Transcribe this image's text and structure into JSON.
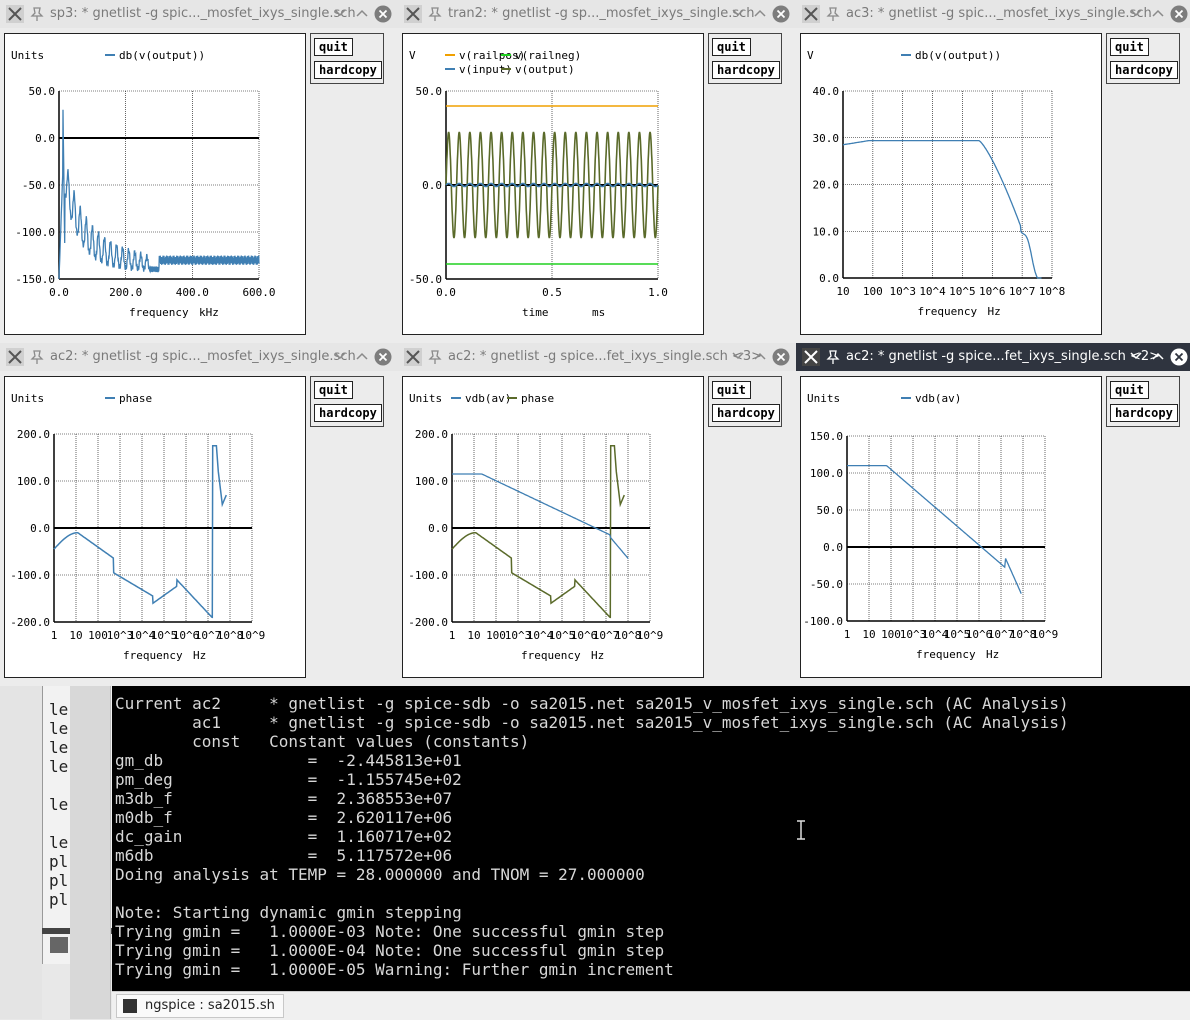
{
  "windows": [
    {
      "title": "sp3: * gnetlist -g spic..._mosfet_ixys_single.sch",
      "active": false
    },
    {
      "title": "tran2: * gnetlist -g sp..._mosfet_ixys_single.sch",
      "active": false
    },
    {
      "title": "ac3: * gnetlist -g spic..._mosfet_ixys_single.sch",
      "active": false
    },
    {
      "title": "ac2: * gnetlist -g spic..._mosfet_ixys_single.sch",
      "active": false
    },
    {
      "title": "ac2: * gnetlist -g spice...fet_ixys_single.sch <3>",
      "active": false
    },
    {
      "title": "ac2: * gnetlist -g spice...fet_ixys_single.sch <2>",
      "active": true
    }
  ],
  "buttons": {
    "quit": "quit",
    "hardcopy": "hardcopy"
  },
  "chart_data": [
    {
      "type": "line",
      "ylabel": "Units",
      "xlabel": "frequency",
      "xunit": "kHz",
      "legend": [
        "db(v(output))"
      ],
      "xticks": [
        "0.0",
        "200.0",
        "400.0",
        "600.0"
      ],
      "yticks": [
        "50.0",
        "0.0",
        "-50.0",
        "-100.0",
        "-150.0"
      ],
      "xlim": [
        0,
        600
      ],
      "ylim": [
        -150,
        50
      ],
      "series": [
        {
          "name": "db(v(output))",
          "color": "#3f7fb3"
        }
      ]
    },
    {
      "type": "line",
      "ylabel": "V",
      "xlabel": "time",
      "xunit": "ms",
      "legend": [
        "v(railpos)",
        "v(railneg)",
        "v(input)",
        "v(output)"
      ],
      "xticks": [
        "0.0",
        "0.5",
        "1.0"
      ],
      "yticks": [
        "50.0",
        "0.0",
        "-50.0"
      ],
      "xlim": [
        0,
        1
      ],
      "ylim": [
        -50,
        50
      ],
      "series": [
        {
          "name": "v(railpos)",
          "color": "#f0a000",
          "value": 42
        },
        {
          "name": "v(railneg)",
          "color": "#20d020",
          "value": -42
        },
        {
          "name": "v(input)",
          "color": "#3f7fb3"
        },
        {
          "name": "v(output)",
          "color": "#5a6a2a"
        }
      ]
    },
    {
      "type": "line",
      "ylabel": "V",
      "xlabel": "frequency",
      "xunit": "Hz",
      "legend": [
        "db(v(output))"
      ],
      "xticks": [
        "10",
        "100",
        "10^3",
        "10^4",
        "10^5",
        "10^6",
        "10^7",
        "10^8"
      ],
      "yticks": [
        "40.0",
        "30.0",
        "20.0",
        "10.0",
        "0.0"
      ],
      "ylim": [
        0,
        40
      ],
      "series": [
        {
          "name": "db(v(output))",
          "color": "#3f7fb3"
        }
      ]
    },
    {
      "type": "line",
      "ylabel": "Units",
      "xlabel": "frequency",
      "xunit": "Hz",
      "legend": [
        "phase"
      ],
      "xticks": [
        "1",
        "10",
        "100",
        "10^3",
        "10^4",
        "10^5",
        "10^6",
        "10^7",
        "10^8",
        "10^9"
      ],
      "yticks": [
        "200.0",
        "100.0",
        "0.0",
        "-100.0",
        "-200.0"
      ],
      "ylim": [
        -200,
        200
      ],
      "series": [
        {
          "name": "phase",
          "color": "#3f7fb3"
        }
      ]
    },
    {
      "type": "line",
      "ylabel": "Units",
      "xlabel": "frequency",
      "xunit": "Hz",
      "legend": [
        "vdb(av)",
        "phase"
      ],
      "xticks": [
        "1",
        "10",
        "100",
        "10^3",
        "10^4",
        "10^5",
        "10^6",
        "10^7",
        "10^8",
        "10^9"
      ],
      "yticks": [
        "200.0",
        "100.0",
        "0.0",
        "-100.0",
        "-200.0"
      ],
      "ylim": [
        -200,
        200
      ],
      "series": [
        {
          "name": "vdb(av)",
          "color": "#3f7fb3"
        },
        {
          "name": "phase",
          "color": "#5a6a2a"
        }
      ]
    },
    {
      "type": "line",
      "ylabel": "Units",
      "xlabel": "frequency",
      "xunit": "Hz",
      "legend": [
        "vdb(av)"
      ],
      "xticks": [
        "1",
        "10",
        "100",
        "10^3",
        "10^4",
        "10^5",
        "10^6",
        "10^7",
        "10^8",
        "10^9"
      ],
      "yticks": [
        "150.0",
        "100.0",
        "50.0",
        "0.0",
        "-50.0",
        "-100.0"
      ],
      "ylim": [
        -100,
        150
      ],
      "series": [
        {
          "name": "vdb(av)",
          "color": "#3f7fb3"
        }
      ]
    }
  ],
  "terminal": {
    "lines": [
      "Current ac2     * gnetlist -g spice-sdb -o sa2015.net sa2015_v_mosfet_ixys_single.sch (AC Analysis)",
      "        ac1     * gnetlist -g spice-sdb -o sa2015.net sa2015_v_mosfet_ixys_single.sch (AC Analysis)",
      "        const   Constant values (constants)",
      "gm_db               =  -2.445813e+01",
      "pm_deg              =  -1.155745e+02",
      "m3db_f              =  2.368553e+07",
      "m0db_f              =  2.620117e+06",
      "dc_gain             =  1.160717e+02",
      "m6db                =  5.117572e+06",
      "Doing analysis at TEMP = 28.000000 and TNOM = 27.000000",
      "",
      "Note: Starting dynamic gmin stepping",
      "Trying gmin =   1.0000E-03 Note: One successful gmin step",
      "Trying gmin =   1.0000E-04 Note: One successful gmin step",
      "Trying gmin =   1.0000E-05 Warning: Further gmin increment"
    ]
  },
  "background_window": {
    "lines": [
      "le",
      "le",
      "le",
      "le",
      "",
      "le",
      "",
      "le",
      "pl",
      "pl",
      "pl"
    ]
  },
  "taskbar": {
    "task_label": "ngspice : sa2015.sh"
  }
}
